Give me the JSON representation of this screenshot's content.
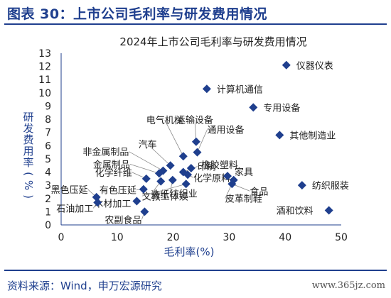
{
  "figure_title": "图表 30：上市公司毛利率与研发费用情况",
  "source": "资料来源：Wind，申万宏源研究",
  "watermark": "www.365jz.com",
  "colors": {
    "brand": "#1F3F8E",
    "marker": "#1F3F8E",
    "text": "#222222",
    "axis": "#1F3F8E"
  },
  "chart_data": {
    "type": "scatter",
    "title": "2024年上市公司毛利率与研发费用情况",
    "xlabel": "毛利率(%)",
    "ylabel": "研发费用率(%)",
    "xlim": [
      0,
      50
    ],
    "ylim": [
      0,
      13
    ],
    "xticks": [
      0,
      10,
      20,
      30,
      40,
      50
    ],
    "yticks": [
      0,
      1,
      2,
      3,
      4,
      5,
      6,
      7,
      8,
      9,
      10,
      11,
      12,
      13
    ],
    "grid": false,
    "legend": "none",
    "marker": "diamond",
    "points": [
      {
        "label": "仪器仪表",
        "x": 40.2,
        "y": 12.1
      },
      {
        "label": "计算机通信",
        "x": 26.0,
        "y": 10.3
      },
      {
        "label": "专用设备",
        "x": 34.3,
        "y": 8.9
      },
      {
        "label": "其他制造业",
        "x": 39.0,
        "y": 6.8
      },
      {
        "label": "运输设备",
        "x": 24.1,
        "y": 6.3
      },
      {
        "label": "电气机械",
        "x": 21.8,
        "y": 5.2
      },
      {
        "label": "通用设备",
        "x": 24.3,
        "y": 5.5
      },
      {
        "label": "汽车",
        "x": 19.5,
        "y": 4.5
      },
      {
        "label": "橡胶塑料",
        "x": 23.2,
        "y": 4.3
      },
      {
        "label": "非金属制品",
        "x": 18.2,
        "y": 4.1
      },
      {
        "label": "金属制品",
        "x": 17.5,
        "y": 3.9
      },
      {
        "label": "印刷",
        "x": 21.8,
        "y": 4.0
      },
      {
        "label": "化学纤维",
        "x": 15.2,
        "y": 3.5
      },
      {
        "label": "化学原料",
        "x": 22.6,
        "y": 3.8
      },
      {
        "label": "家具",
        "x": 29.7,
        "y": 3.7
      },
      {
        "label": "黑色压延",
        "x": 6.3,
        "y": 2.1
      },
      {
        "label": "有色压延",
        "x": 14.7,
        "y": 2.7
      },
      {
        "label": "造纸",
        "x": 17.8,
        "y": 3.3
      },
      {
        "label": "纺织业",
        "x": 19.9,
        "y": 3.4
      },
      {
        "label": "食品",
        "x": 30.5,
        "y": 3.1
      },
      {
        "label": "纺织服装",
        "x": 43.0,
        "y": 3.0
      },
      {
        "label": "木材加工",
        "x": 13.5,
        "y": 1.8
      },
      {
        "label": "石油加工",
        "x": 6.5,
        "y": 1.7
      },
      {
        "label": "文教工体娱",
        "x": 22.3,
        "y": 3.1
      },
      {
        "label": "皮革制鞋",
        "x": 30.8,
        "y": 3.4
      },
      {
        "label": "农副食品",
        "x": 14.9,
        "y": 1.0
      },
      {
        "label": "酒和饮料",
        "x": 47.8,
        "y": 1.1
      }
    ]
  }
}
